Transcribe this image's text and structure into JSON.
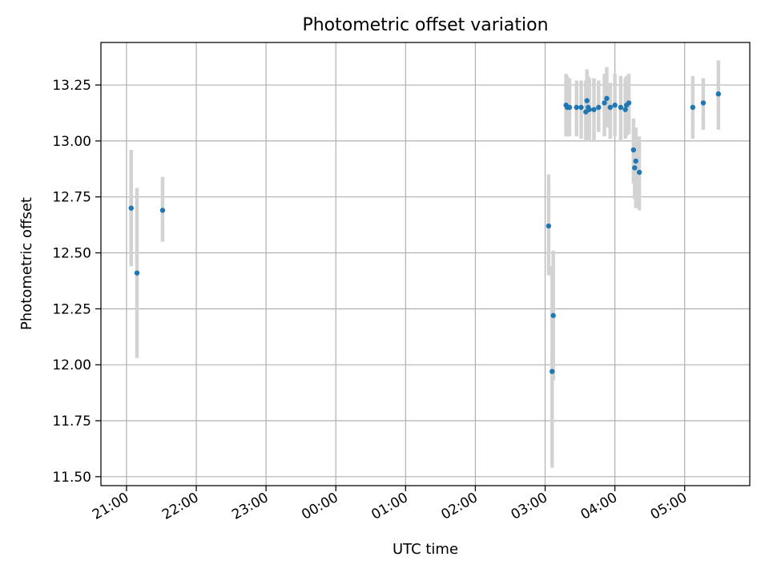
{
  "chart_data": {
    "type": "scatter",
    "title": "Photometric offset variation",
    "xlabel": "UTC time",
    "ylabel": "Photometric offset",
    "x_unit": "UTC time (HH:MM)",
    "x_ticks": [
      "21:00",
      "22:00",
      "23:00",
      "00:00",
      "01:00",
      "02:00",
      "03:00",
      "04:00",
      "05:00"
    ],
    "y_ticks": [
      "11.50",
      "11.75",
      "12.00",
      "12.25",
      "12.50",
      "12.75",
      "13.00",
      "13.25"
    ],
    "xlim": [
      "20:38",
      "05:56"
    ],
    "ylim": [
      11.46,
      13.44
    ],
    "grid": true,
    "marker_color": "#1f77b4",
    "errorbar_color": "#d3d3d3",
    "points": [
      {
        "t": "21:04",
        "y": 12.7,
        "lo": 12.44,
        "hi": 12.96
      },
      {
        "t": "21:09",
        "y": 12.41,
        "lo": 12.03,
        "hi": 12.79
      },
      {
        "t": "21:31",
        "y": 12.69,
        "lo": 12.55,
        "hi": 12.84
      },
      {
        "t": "03:03",
        "y": 12.62,
        "lo": 12.4,
        "hi": 12.85
      },
      {
        "t": "03:06",
        "y": 11.97,
        "lo": 11.54,
        "hi": 12.44
      },
      {
        "t": "03:07",
        "y": 12.22,
        "lo": 11.93,
        "hi": 12.51
      },
      {
        "t": "03:18",
        "y": 13.16,
        "lo": 13.02,
        "hi": 13.3
      },
      {
        "t": "03:19",
        "y": 13.15,
        "lo": 13.02,
        "hi": 13.29
      },
      {
        "t": "03:21",
        "y": 13.15,
        "lo": 13.02,
        "hi": 13.28
      },
      {
        "t": "03:27",
        "y": 13.15,
        "lo": 13.02,
        "hi": 13.27
      },
      {
        "t": "03:31",
        "y": 13.15,
        "lo": 13.01,
        "hi": 13.27
      },
      {
        "t": "03:35",
        "y": 13.13,
        "lo": 13.0,
        "hi": 13.27
      },
      {
        "t": "03:36",
        "y": 13.18,
        "lo": 13.05,
        "hi": 13.32
      },
      {
        "t": "03:37",
        "y": 13.15,
        "lo": 13.0,
        "hi": 13.29
      },
      {
        "t": "03:38",
        "y": 13.14,
        "lo": 13.0,
        "hi": 13.28
      },
      {
        "t": "03:42",
        "y": 13.14,
        "lo": 13.0,
        "hi": 13.28
      },
      {
        "t": "03:46",
        "y": 13.15,
        "lo": 13.04,
        "hi": 13.27
      },
      {
        "t": "03:51",
        "y": 13.17,
        "lo": 13.02,
        "hi": 13.3
      },
      {
        "t": "03:53",
        "y": 13.19,
        "lo": 13.06,
        "hi": 13.33
      },
      {
        "t": "03:56",
        "y": 13.15,
        "lo": 13.01,
        "hi": 13.26
      },
      {
        "t": "04:00",
        "y": 13.16,
        "lo": 13.02,
        "hi": 13.3
      },
      {
        "t": "04:05",
        "y": 13.15,
        "lo": 13.0,
        "hi": 13.29
      },
      {
        "t": "04:09",
        "y": 13.14,
        "lo": 13.01,
        "hi": 13.28
      },
      {
        "t": "04:10",
        "y": 13.16,
        "lo": 13.02,
        "hi": 13.29
      },
      {
        "t": "04:12",
        "y": 13.17,
        "lo": 13.03,
        "hi": 13.3
      },
      {
        "t": "04:16",
        "y": 12.96,
        "lo": 12.81,
        "hi": 13.1
      },
      {
        "t": "04:17",
        "y": 12.88,
        "lo": 12.74,
        "hi": 13.02
      },
      {
        "t": "04:18",
        "y": 12.91,
        "lo": 12.7,
        "hi": 13.06
      },
      {
        "t": "04:21",
        "y": 12.86,
        "lo": 12.69,
        "hi": 13.02
      },
      {
        "t": "05:07",
        "y": 13.15,
        "lo": 13.01,
        "hi": 13.29
      },
      {
        "t": "05:16",
        "y": 13.17,
        "lo": 13.05,
        "hi": 13.28
      },
      {
        "t": "05:29",
        "y": 13.21,
        "lo": 13.05,
        "hi": 13.36
      }
    ]
  }
}
